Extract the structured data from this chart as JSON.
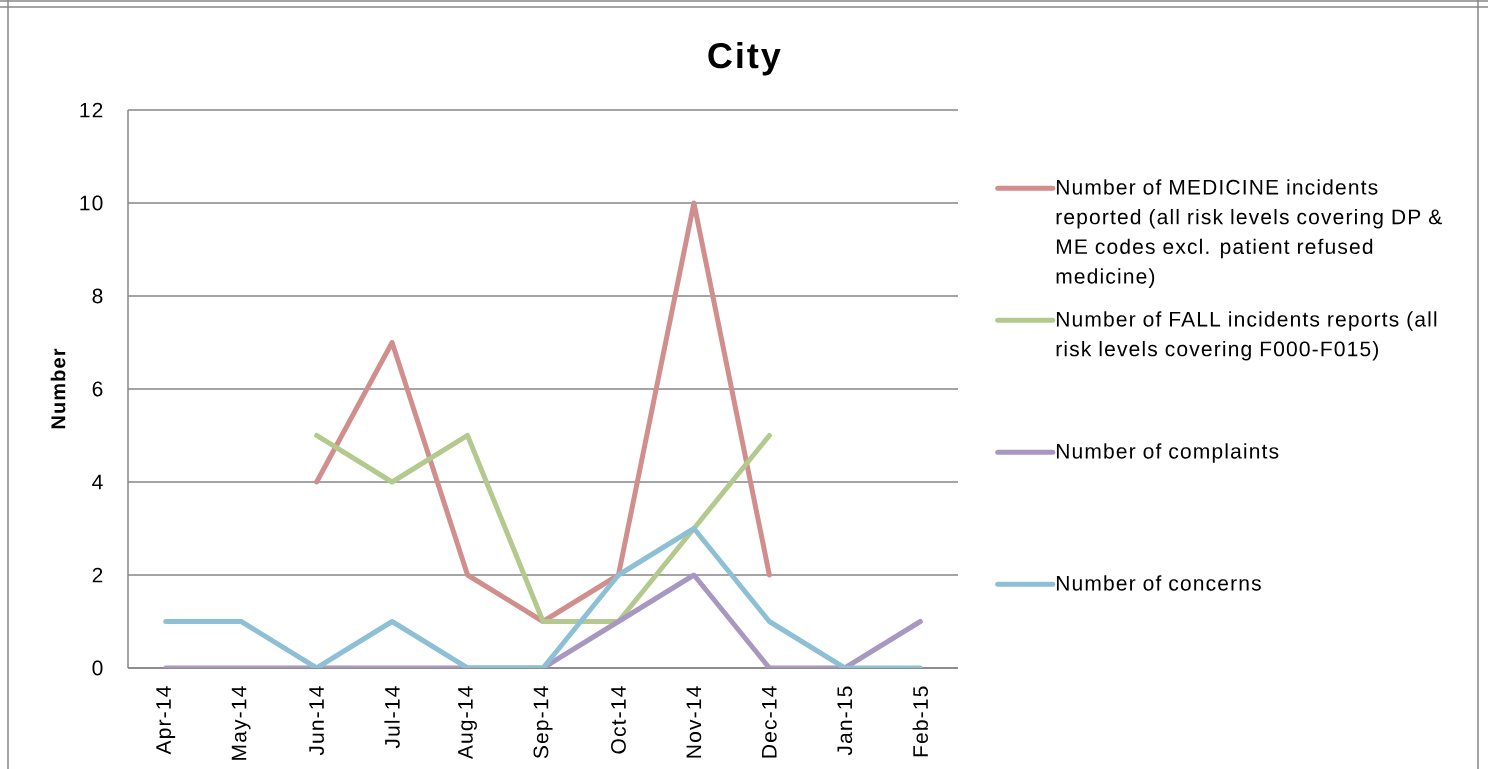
{
  "chart_data": {
    "type": "line",
    "title": "City",
    "ylabel": "Number",
    "categories": [
      "Apr-14",
      "May-14",
      "Jun-14",
      "Jul-14",
      "Aug-14",
      "Sep-14",
      "Oct-14",
      "Nov-14",
      "Dec-14",
      "Jan-15",
      "Feb-15"
    ],
    "series": [
      {
        "name": "Number of MEDICINE incidents reported (all risk levels covering DP & ME codes excl. patient refused medicine)",
        "color": "#d08f8d",
        "values": [
          null,
          null,
          4,
          7,
          2,
          1,
          2,
          10,
          2,
          null,
          null
        ]
      },
      {
        "name": "Number of FALL incidents reports (all risk levels covering F000-F015)",
        "color": "#b3c98e",
        "values": [
          null,
          null,
          5,
          4,
          5,
          1,
          1,
          3,
          5,
          null,
          null
        ]
      },
      {
        "name": "Number of complaints",
        "color": "#a898c0",
        "values": [
          0,
          0,
          0,
          0,
          0,
          0,
          1,
          2,
          0,
          0,
          1
        ]
      },
      {
        "name": "Number of concerns",
        "color": "#8dc0d5",
        "values": [
          1,
          1,
          0,
          1,
          0,
          0,
          2,
          3,
          1,
          0,
          0
        ]
      }
    ],
    "ylim": [
      0,
      12
    ],
    "yticks": [
      0,
      2,
      4,
      6,
      8,
      10,
      12
    ],
    "grid": "y",
    "legend": "right",
    "marker": "none",
    "line_style": "solid"
  }
}
